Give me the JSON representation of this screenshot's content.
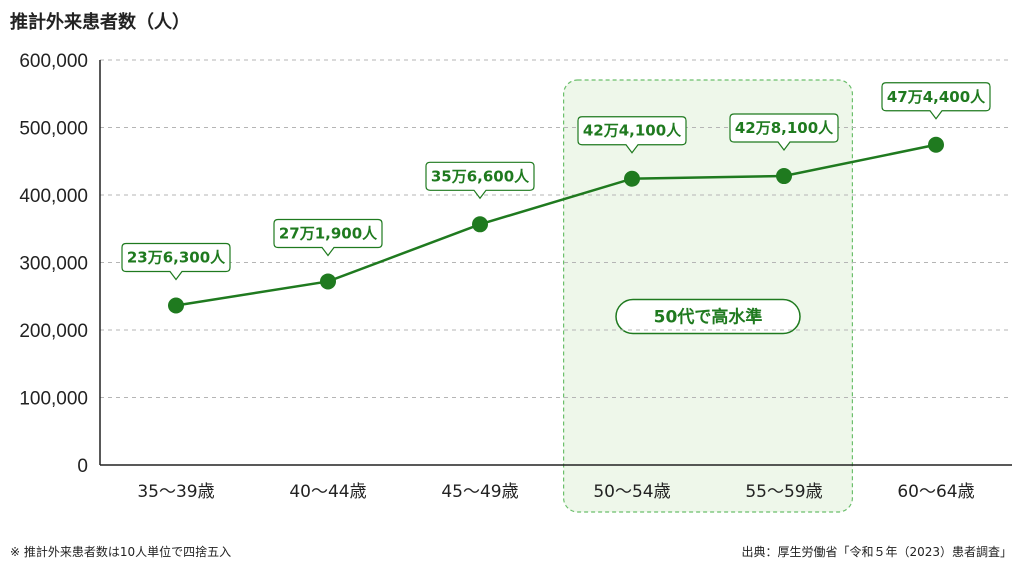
{
  "chart_data": {
    "type": "line",
    "ylabel": "推計外来患者数（人）",
    "categories": [
      "35〜39歳",
      "40〜44歳",
      "45〜49歳",
      "50〜54歳",
      "55〜59歳",
      "60〜64歳"
    ],
    "values": [
      236300,
      271900,
      356600,
      424100,
      428100,
      474400
    ],
    "data_labels": [
      "23万6,300人",
      "27万1,900人",
      "35万6,600人",
      "42万4,100人",
      "42万8,100人",
      "47万4,400人"
    ],
    "yticks": [
      "600,000",
      "500,000",
      "400,000",
      "300,000",
      "200,000",
      "100,000",
      "0"
    ],
    "ylim": [
      0,
      600000
    ],
    "grid": true,
    "highlight": {
      "categories": [
        "50〜54歳",
        "55〜59歳"
      ],
      "label": "50代で高水準"
    },
    "line_color": "#1f7a1f",
    "highlight_fill": "#eef7ea",
    "footnote": "※ 推計外来患者数は10人単位で四捨五入",
    "source": "出典：厚生労働省「令和５年（2023）患者調査」"
  }
}
